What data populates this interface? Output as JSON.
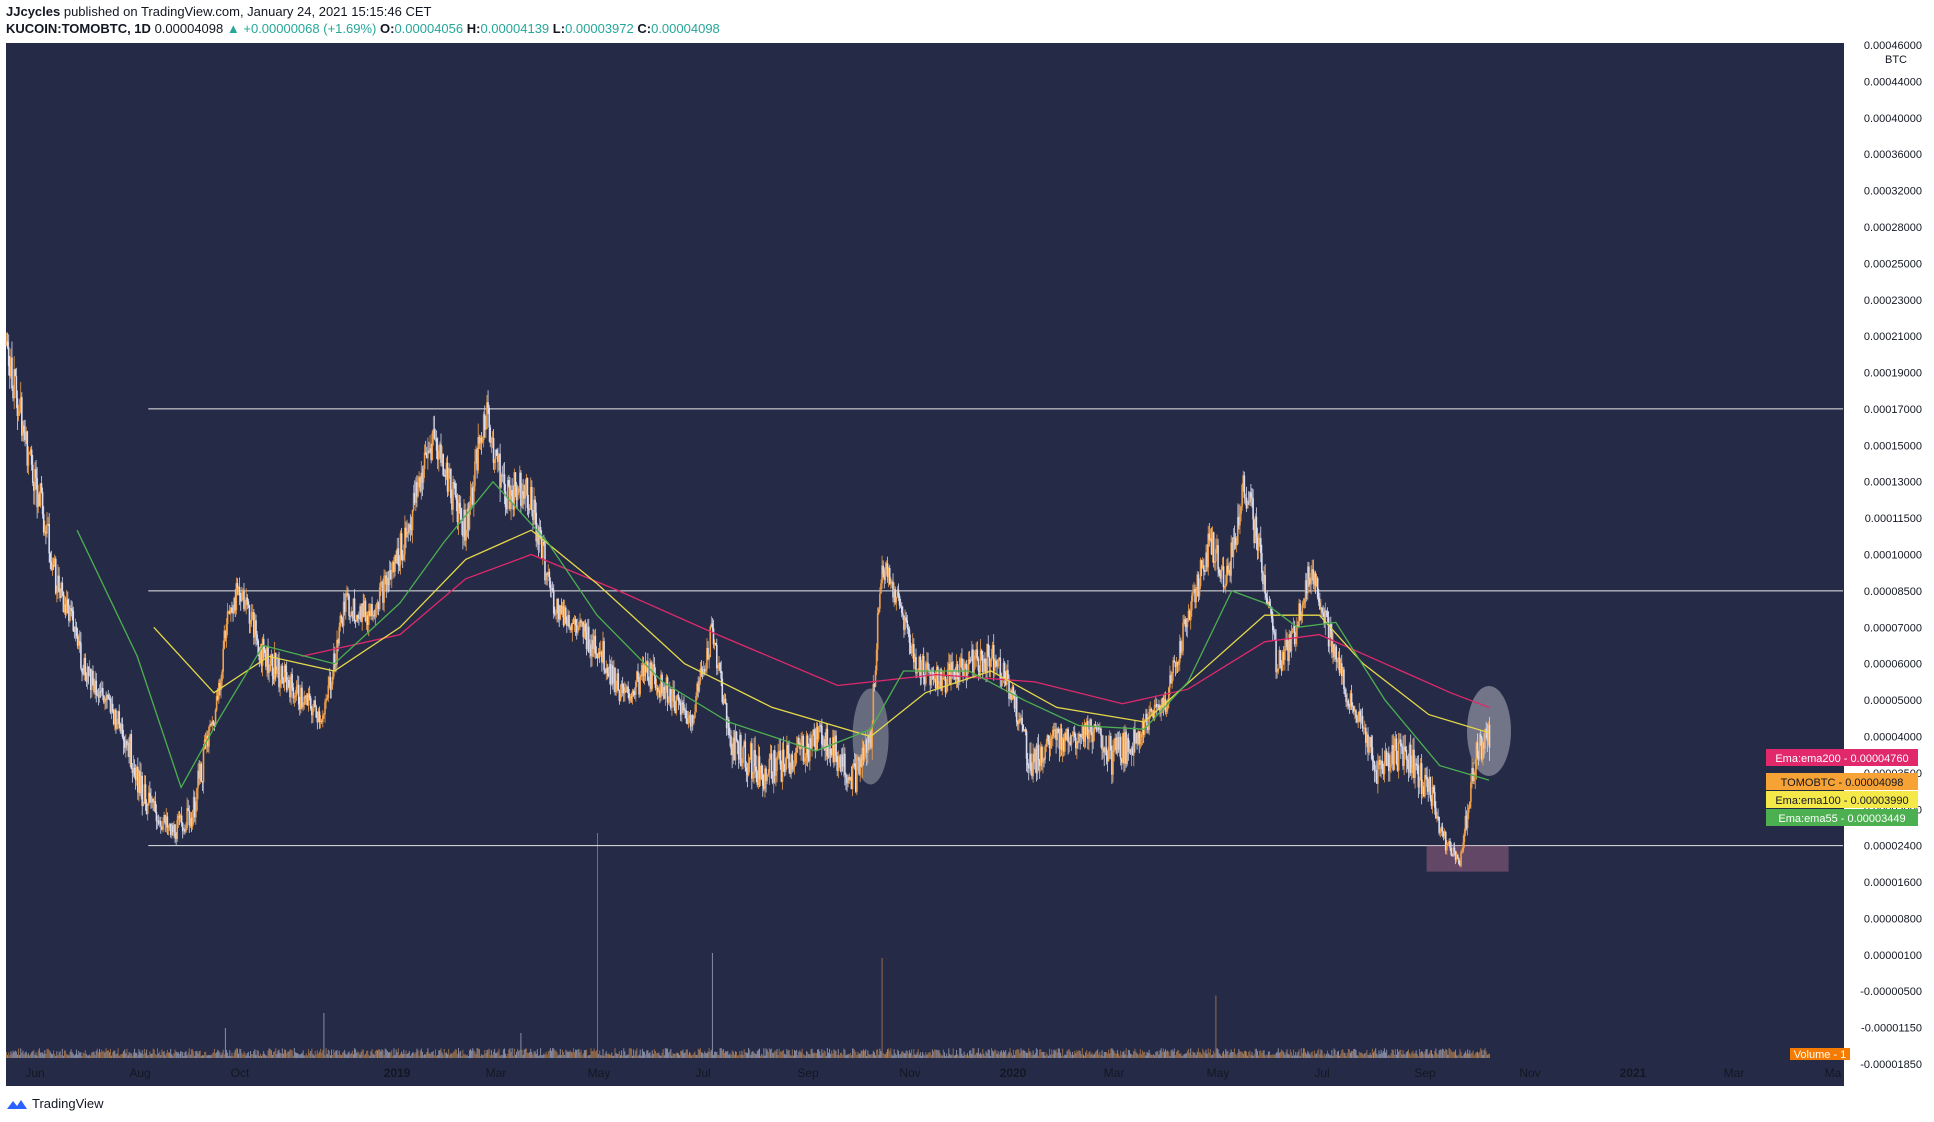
{
  "header": {
    "author": "JJcycles",
    "published": " published on TradingView.com, January 24, 2021 15:15:46 CET",
    "symbol": "KUCOIN:TOMOBTC, 1D",
    "last": "0.00004098",
    "change": "▲ +0.00000068 (+1.69%)",
    "o_label": "O:",
    "o_val": "0.00004056",
    "h_label": "H:",
    "h_val": "0.00004139",
    "l_label": "L:",
    "l_val": "0.00003972",
    "c_label": "C:",
    "c_val": "0.00004098"
  },
  "footer": {
    "brand": "TradingView",
    "icon": "tradingview-logo-icon"
  },
  "colors": {
    "background": "#252b47",
    "candle_up": "#f0a04b",
    "candle_down": "#d9dcef",
    "ema55": "#4caf50",
    "ema100": "#e6d84a",
    "ema200": "#e0286b",
    "hline": "#e6e6e6"
  },
  "chart_data": {
    "type": "candlestick",
    "symbol": "KUCOIN:TOMOBTC",
    "timeframe": "1D",
    "price_unit": "BTC",
    "x_ticks": [
      {
        "label": "Jun",
        "bold": false
      },
      {
        "label": "Aug",
        "bold": false
      },
      {
        "label": "Oct",
        "bold": false
      },
      {
        "label": "2019",
        "bold": true
      },
      {
        "label": "Mar",
        "bold": false
      },
      {
        "label": "May",
        "bold": false
      },
      {
        "label": "Jul",
        "bold": false
      },
      {
        "label": "Sep",
        "bold": false
      },
      {
        "label": "Nov",
        "bold": false
      },
      {
        "label": "2020",
        "bold": true
      },
      {
        "label": "Mar",
        "bold": false
      },
      {
        "label": "May",
        "bold": false
      },
      {
        "label": "Jul",
        "bold": false
      },
      {
        "label": "Sep",
        "bold": false
      },
      {
        "label": "Nov",
        "bold": false
      },
      {
        "label": "2021",
        "bold": true
      },
      {
        "label": "Mar",
        "bold": false
      },
      {
        "label": "Ma",
        "bold": false
      }
    ],
    "y_ticks": [
      "0.00046000",
      "0.00044000",
      "0.00040000",
      "0.00036000",
      "0.00032000",
      "0.00028000",
      "0.00025000",
      "0.00023000",
      "0.00021000",
      "0.00019000",
      "0.00017000",
      "0.00015000",
      "0.00013000",
      "0.00011500",
      "0.00010000",
      "0.00008500",
      "0.00007000",
      "0.00006000",
      "0.00005000",
      "0.00004000",
      "0.00003500",
      "0.00003000",
      "0.00002400",
      "0.00001600",
      "0.00000800",
      "0.00000100",
      "-0.00000500",
      "-0.00001150",
      "-0.00001850"
    ],
    "horizontal_levels": [
      0.00017,
      8.5e-05,
      2.4e-05
    ],
    "price_path": [
      [
        0,
        0.000205
      ],
      [
        18,
        0.00015
      ],
      [
        45,
        9e-05
      ],
      [
        70,
        6e-05
      ],
      [
        100,
        4.5e-05
      ],
      [
        125,
        3.2e-05
      ],
      [
        150,
        2.6e-05
      ],
      [
        170,
        2.9e-05
      ],
      [
        190,
        4.5e-05
      ],
      [
        205,
        8e-05
      ],
      [
        215,
        8.5e-05
      ],
      [
        230,
        6.5e-05
      ],
      [
        250,
        5.7e-05
      ],
      [
        270,
        5e-05
      ],
      [
        290,
        4.5e-05
      ],
      [
        310,
        8e-05
      ],
      [
        330,
        7.5e-05
      ],
      [
        350,
        9e-05
      ],
      [
        370,
        0.000115
      ],
      [
        390,
        0.000155
      ],
      [
        405,
        0.00013
      ],
      [
        420,
        0.00011
      ],
      [
        438,
        0.000168
      ],
      [
        455,
        0.000125
      ],
      [
        475,
        0.00013
      ],
      [
        490,
        0.0001
      ],
      [
        500,
        8e-05
      ],
      [
        520,
        7e-05
      ],
      [
        540,
        6.5e-05
      ],
      [
        565,
        5e-05
      ],
      [
        585,
        5.8e-05
      ],
      [
        605,
        5.2e-05
      ],
      [
        625,
        4.4e-05
      ],
      [
        645,
        7e-05
      ],
      [
        660,
        4e-05
      ],
      [
        690,
        3.5e-05
      ],
      [
        720,
        3.7e-05
      ],
      [
        745,
        4.1e-05
      ],
      [
        775,
        3.4e-05
      ],
      [
        790,
        4e-05
      ],
      [
        800,
        9.5e-05
      ],
      [
        815,
        8e-05
      ],
      [
        830,
        6e-05
      ],
      [
        855,
        5.5e-05
      ],
      [
        880,
        6e-05
      ],
      [
        905,
        6.2e-05
      ],
      [
        920,
        5e-05
      ],
      [
        935,
        3.6e-05
      ],
      [
        960,
        4e-05
      ],
      [
        990,
        4.2e-05
      ],
      [
        1010,
        3.7e-05
      ],
      [
        1030,
        4e-05
      ],
      [
        1060,
        5e-05
      ],
      [
        1080,
        7.5e-05
      ],
      [
        1100,
        0.000105
      ],
      [
        1115,
        9e-05
      ],
      [
        1132,
        0.00013
      ],
      [
        1145,
        0.0001
      ],
      [
        1160,
        6e-05
      ],
      [
        1175,
        6.5e-05
      ],
      [
        1192,
        9.5e-05
      ],
      [
        1210,
        6.5e-05
      ],
      [
        1230,
        4.8e-05
      ],
      [
        1250,
        3.5e-05
      ],
      [
        1275,
        3.8e-05
      ],
      [
        1300,
        3.3e-05
      ],
      [
        1315,
        2.4e-05
      ],
      [
        1328,
        2.1e-05
      ],
      [
        1340,
        3.6e-05
      ],
      [
        1355,
        4.1e-05
      ]
    ],
    "ema55_path": [
      [
        65,
        0.00011
      ],
      [
        120,
        6.2e-05
      ],
      [
        160,
        3.3e-05
      ],
      [
        195,
        4.5e-05
      ],
      [
        235,
        6.5e-05
      ],
      [
        300,
        6e-05
      ],
      [
        360,
        8e-05
      ],
      [
        400,
        0.000105
      ],
      [
        445,
        0.00013
      ],
      [
        495,
        0.000105
      ],
      [
        540,
        7.5e-05
      ],
      [
        600,
        5.5e-05
      ],
      [
        660,
        4.4e-05
      ],
      [
        740,
        3.8e-05
      ],
      [
        790,
        4.2e-05
      ],
      [
        820,
        5.8e-05
      ],
      [
        880,
        5.8e-05
      ],
      [
        930,
        5e-05
      ],
      [
        980,
        4.3e-05
      ],
      [
        1040,
        4.2e-05
      ],
      [
        1080,
        5.5e-05
      ],
      [
        1120,
        8.5e-05
      ],
      [
        1150,
        8e-05
      ],
      [
        1180,
        7e-05
      ],
      [
        1215,
        7.2e-05
      ],
      [
        1260,
        5e-05
      ],
      [
        1310,
        3.6e-05
      ],
      [
        1355,
        3.4e-05
      ]
    ],
    "ema100_path": [
      [
        135,
        7e-05
      ],
      [
        190,
        5.2e-05
      ],
      [
        240,
        6.2e-05
      ],
      [
        300,
        5.8e-05
      ],
      [
        360,
        7e-05
      ],
      [
        420,
        9.8e-05
      ],
      [
        480,
        0.00011
      ],
      [
        540,
        8.8e-05
      ],
      [
        620,
        6e-05
      ],
      [
        700,
        4.8e-05
      ],
      [
        790,
        4e-05
      ],
      [
        840,
        5.2e-05
      ],
      [
        900,
        5.8e-05
      ],
      [
        960,
        4.8e-05
      ],
      [
        1040,
        4.4e-05
      ],
      [
        1100,
        6e-05
      ],
      [
        1150,
        7.5e-05
      ],
      [
        1200,
        7.5e-05
      ],
      [
        1240,
        6e-05
      ],
      [
        1300,
        4.6e-05
      ],
      [
        1355,
        4.1e-05
      ]
    ],
    "ema200_path": [
      [
        270,
        6.2e-05
      ],
      [
        360,
        6.8e-05
      ],
      [
        420,
        9e-05
      ],
      [
        480,
        0.0001
      ],
      [
        560,
        8.5e-05
      ],
      [
        650,
        6.8e-05
      ],
      [
        760,
        5.4e-05
      ],
      [
        850,
        5.7e-05
      ],
      [
        940,
        5.5e-05
      ],
      [
        1020,
        4.9e-05
      ],
      [
        1080,
        5.3e-05
      ],
      [
        1150,
        6.6e-05
      ],
      [
        1200,
        6.8e-05
      ],
      [
        1260,
        6e-05
      ],
      [
        1320,
        5.2e-05
      ],
      [
        1355,
        4.8e-05
      ]
    ],
    "volume_spikes": [
      [
        540,
        0.9
      ],
      [
        645,
        0.42
      ],
      [
        800,
        0.4
      ],
      [
        1105,
        0.25
      ],
      [
        200,
        0.12
      ],
      [
        290,
        0.18
      ],
      [
        470,
        0.1
      ]
    ],
    "price_tags": [
      {
        "name": "Ema:ema200",
        "value": "0.00004760",
        "color": "#e0286b",
        "text_color": "#ffffff"
      },
      {
        "name": "TOMOBTC",
        "value": "0.00004098",
        "color": "#f7a234",
        "text_color": "#131722"
      },
      {
        "name": "Ema:ema100",
        "value": "0.00003990",
        "color": "#f5e94a",
        "text_color": "#131722"
      },
      {
        "name": "Ema:ema55",
        "value": "0.00003449",
        "color": "#4caf50",
        "text_color": "#ffffff"
      }
    ],
    "volume_label": "Volume",
    "volume_value": "1"
  }
}
